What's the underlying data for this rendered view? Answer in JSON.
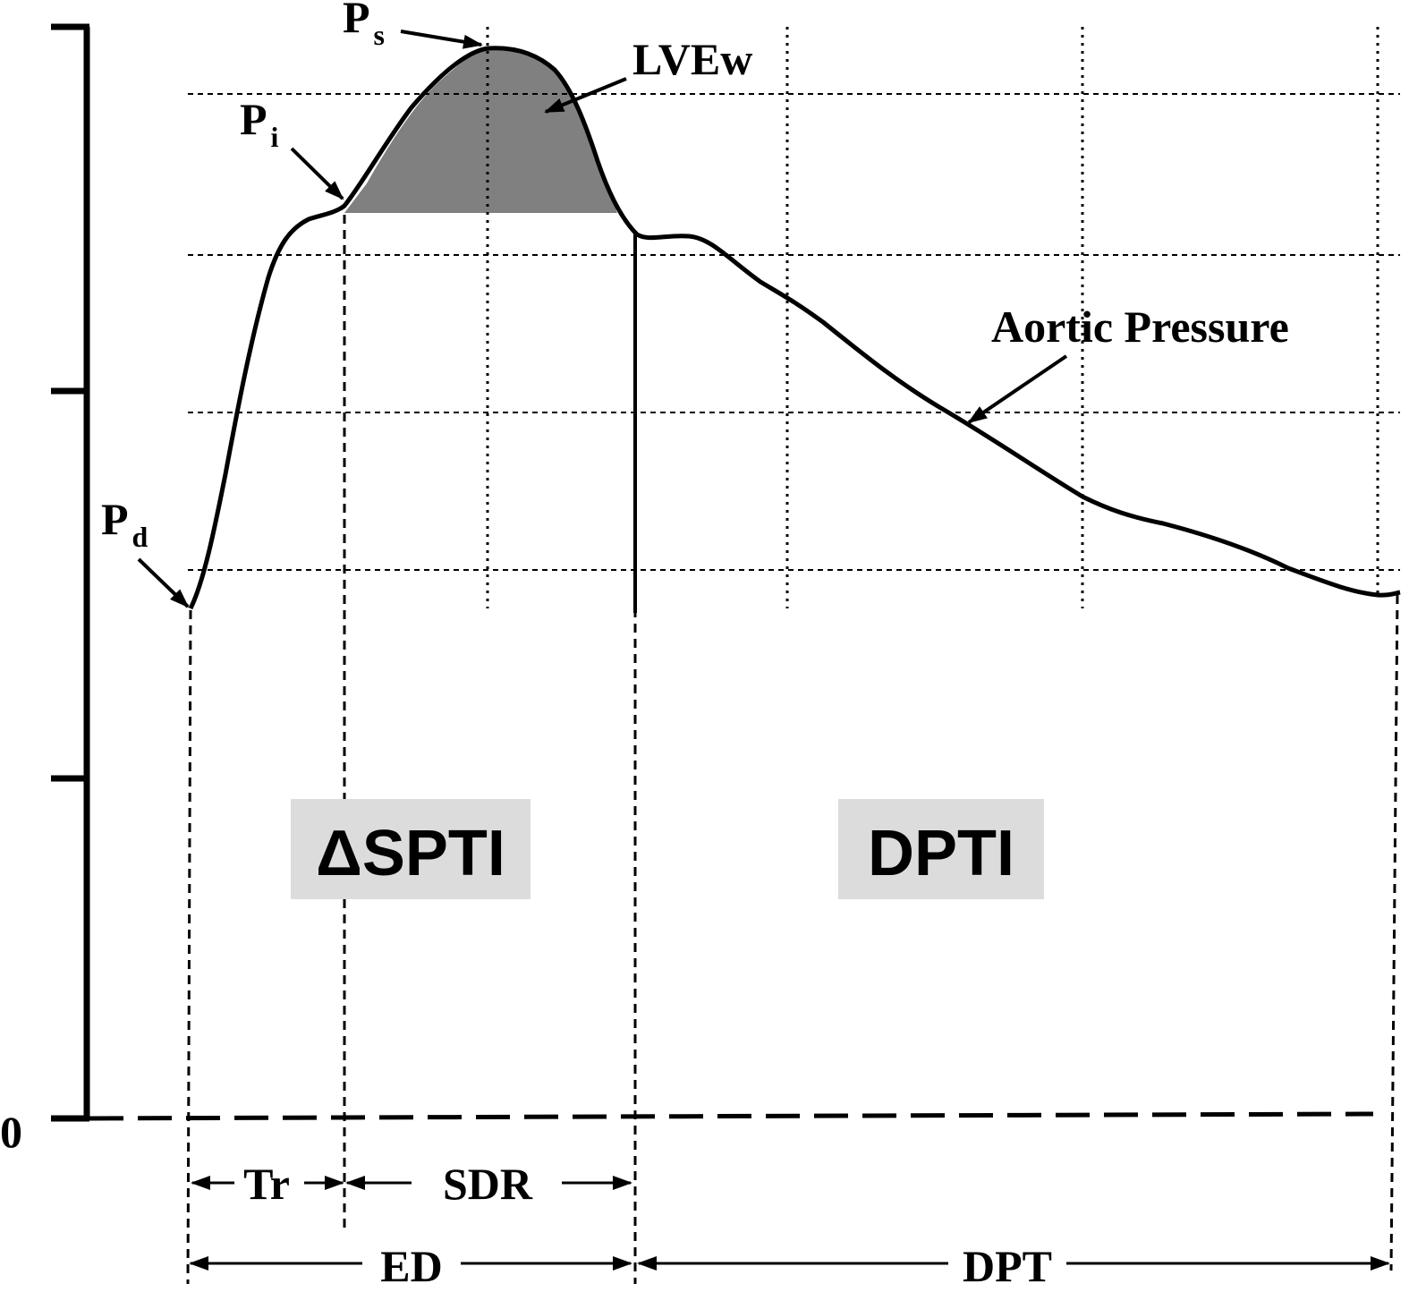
{
  "labels": {
    "ps": {
      "main": "P",
      "sub": "s"
    },
    "pi": {
      "main": "P",
      "sub": "i"
    },
    "pd": {
      "main": "P",
      "sub": "d"
    },
    "lvew": "LVEw",
    "aortic_pressure": "Aortic Pressure",
    "spti": "ΔSPTI",
    "dpti": "DPTI",
    "zero": "0",
    "tr": "Tr",
    "sdr": "SDR",
    "ed": "ED",
    "dpt": "DPT"
  }
}
